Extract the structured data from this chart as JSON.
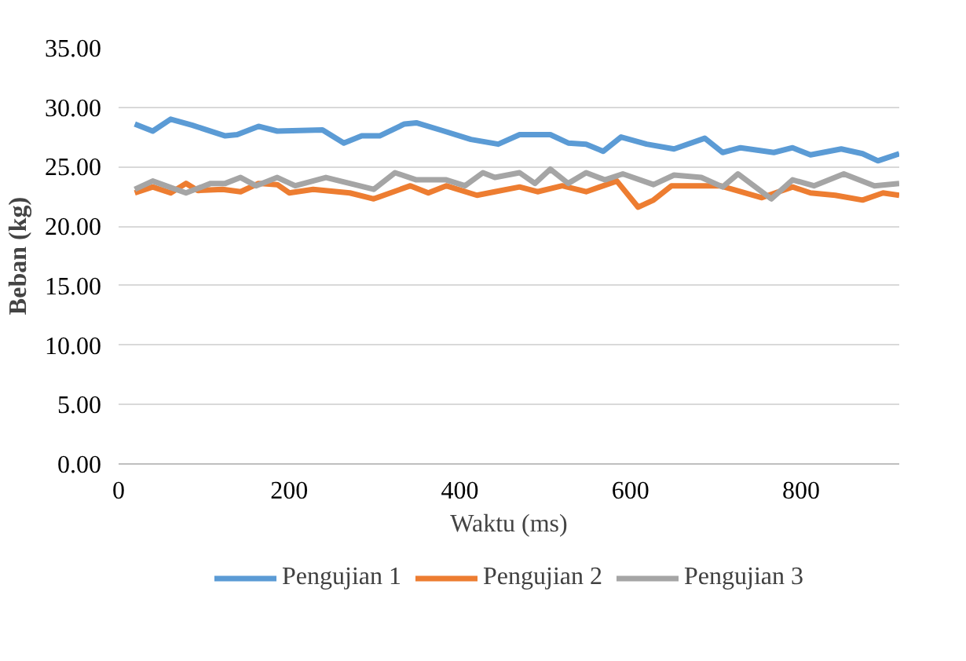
{
  "chart_data": {
    "type": "line",
    "xlabel": "Waktu (ms)",
    "ylabel": "Beban (kg)",
    "xlim": [
      0,
      915
    ],
    "xticks": [
      0,
      200,
      400,
      600,
      800
    ],
    "ylim": [
      0,
      35
    ],
    "yticks": [
      {
        "value": 0,
        "label": "0.00"
      },
      {
        "value": 5,
        "label": "5.00"
      },
      {
        "value": 10,
        "label": "10.00"
      },
      {
        "value": 15,
        "label": "15.00"
      },
      {
        "value": 20,
        "label": "20.00"
      },
      {
        "value": 25,
        "label": "25.00"
      },
      {
        "value": 30,
        "label": "30.00"
      },
      {
        "value": 35,
        "label": "35.00"
      }
    ],
    "grid": "y",
    "legend": "bottom",
    "marker": "none",
    "line_style": "solid",
    "series": [
      {
        "name": "Pengujian 1",
        "color": "#5b9bd5",
        "x": [
          19,
          40,
          61,
          86,
          125,
          139,
          164,
          186,
          239,
          264,
          285,
          306,
          335,
          349,
          377,
          413,
          445,
          470,
          506,
          527,
          548,
          568,
          589,
          619,
          651,
          687,
          708,
          729,
          768,
          790,
          811,
          847,
          872,
          890,
          915
        ],
        "values": [
          28.6,
          28.0,
          29.0,
          28.5,
          27.6,
          27.7,
          28.4,
          28.0,
          28.1,
          27.0,
          27.6,
          27.6,
          28.6,
          28.7,
          28.1,
          27.3,
          26.9,
          27.7,
          27.7,
          27.0,
          26.9,
          26.3,
          27.5,
          26.9,
          26.5,
          27.4,
          26.2,
          26.6,
          26.2,
          26.6,
          26.0,
          26.5,
          26.1,
          25.5,
          26.1
        ]
      },
      {
        "name": "Pengujian 2",
        "color": "#ed7d31",
        "x": [
          19,
          40,
          61,
          79,
          93,
          122,
          143,
          164,
          186,
          200,
          228,
          271,
          299,
          342,
          363,
          384,
          420,
          441,
          470,
          491,
          520,
          548,
          584,
          609,
          627,
          648,
          705,
          754,
          790,
          811,
          840,
          872,
          896,
          915
        ],
        "values": [
          22.8,
          23.3,
          22.8,
          23.6,
          23.0,
          23.1,
          22.9,
          23.6,
          23.5,
          22.8,
          23.1,
          22.8,
          22.3,
          23.4,
          22.8,
          23.4,
          22.6,
          22.9,
          23.3,
          22.9,
          23.4,
          22.9,
          23.8,
          21.6,
          22.2,
          23.4,
          23.4,
          22.4,
          23.3,
          22.8,
          22.6,
          22.2,
          22.8,
          22.6
        ]
      },
      {
        "name": "Pengujian 3",
        "color": "#a5a5a5",
        "x": [
          19,
          40,
          79,
          108,
          125,
          143,
          161,
          186,
          207,
          243,
          271,
          299,
          324,
          349,
          384,
          406,
          427,
          441,
          470,
          488,
          506,
          527,
          548,
          570,
          591,
          627,
          651,
          683,
          708,
          726,
          765,
          790,
          815,
          850,
          886,
          915
        ],
        "values": [
          23.1,
          23.8,
          22.8,
          23.6,
          23.6,
          24.1,
          23.4,
          24.1,
          23.4,
          24.1,
          23.6,
          23.1,
          24.5,
          23.9,
          23.9,
          23.4,
          24.5,
          24.1,
          24.5,
          23.6,
          24.8,
          23.6,
          24.5,
          23.9,
          24.4,
          23.5,
          24.3,
          24.1,
          23.3,
          24.4,
          22.3,
          23.9,
          23.4,
          24.4,
          23.4,
          23.6
        ]
      }
    ]
  }
}
